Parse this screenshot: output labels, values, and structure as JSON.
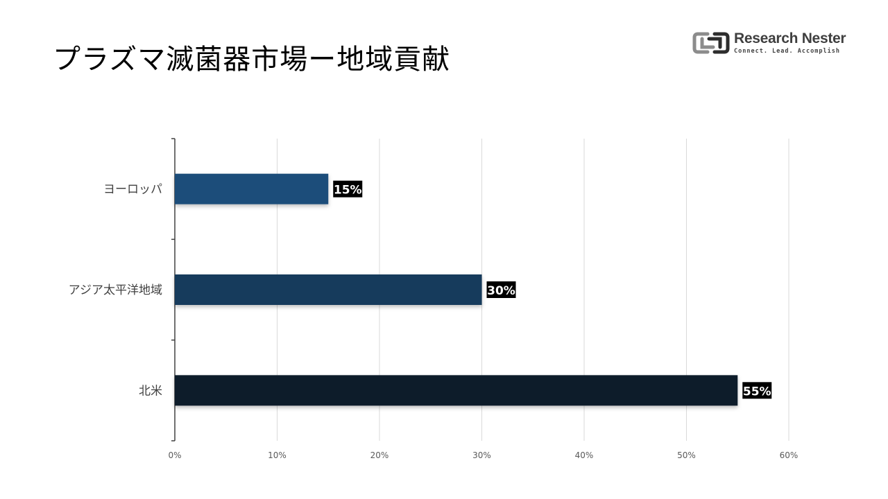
{
  "title": "プラズマ滅菌器市場ー地域貢献",
  "logo": {
    "name": "Research Nester",
    "tagline": "Connect. Lead. Accomplish"
  },
  "colors": {
    "europe": "#1f4e7a",
    "asia_pacific": "#173a5c",
    "north_america": "#0d1b2a",
    "gridline": "#d9d9d9",
    "label_bg": "#000000",
    "label_text": "#ffffff"
  },
  "chart_data": {
    "type": "bar",
    "orientation": "horizontal",
    "categories": [
      "ヨーロッパ",
      "アジア太平洋地域",
      "北米"
    ],
    "values": [
      15,
      30,
      55
    ],
    "value_labels": [
      "15%",
      "30%",
      "55%"
    ],
    "xlim": [
      0,
      60
    ],
    "xticks": [
      "0%",
      "10%",
      "20%",
      "30%",
      "40%",
      "50%",
      "60%"
    ],
    "grid": true,
    "legend": "none",
    "xlabel": "",
    "ylabel": ""
  }
}
